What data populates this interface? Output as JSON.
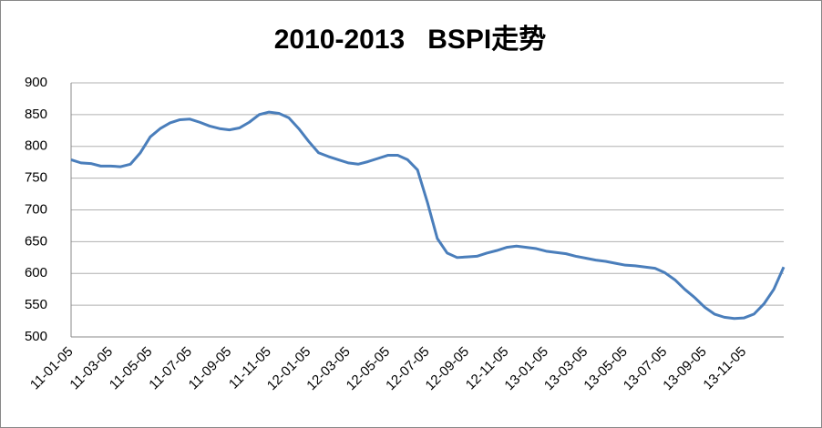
{
  "chart_data": {
    "type": "line",
    "title": "2010-2013   BSPI走势",
    "categories": [
      "11-01-05",
      null,
      null,
      null,
      "11-03-05",
      null,
      null,
      null,
      "11-05-05",
      null,
      null,
      null,
      "11-07-05",
      null,
      null,
      null,
      "11-09-05",
      null,
      null,
      null,
      "11-11-05",
      null,
      null,
      null,
      "12-01-05",
      null,
      null,
      null,
      "12-03-05",
      null,
      null,
      null,
      "12-05-05",
      null,
      null,
      null,
      "12-07-05",
      null,
      null,
      null,
      "12-09-05",
      null,
      null,
      null,
      "12-11-05",
      null,
      null,
      null,
      "13-01-05",
      null,
      null,
      null,
      "13-03-05",
      null,
      null,
      null,
      "13-05-05",
      null,
      null,
      null,
      "13-07-05",
      null,
      null,
      null,
      "13-09-05",
      null,
      null,
      null,
      "13-11-05",
      null,
      null,
      null,
      null
    ],
    "series": [
      {
        "name": "BSPI",
        "color": "#4a7ebb",
        "values": [
          779,
          774,
          773,
          769,
          769,
          768,
          772,
          790,
          815,
          828,
          837,
          842,
          843,
          838,
          832,
          828,
          826,
          829,
          838,
          850,
          854,
          852,
          845,
          828,
          808,
          790,
          784,
          779,
          774,
          772,
          776,
          781,
          786,
          786,
          779,
          763,
          712,
          655,
          632,
          625,
          626,
          627,
          632,
          636,
          641,
          643,
          641,
          639,
          635,
          633,
          631,
          627,
          624,
          621,
          619,
          616,
          613,
          612,
          610,
          608,
          601,
          590,
          575,
          562,
          547,
          536,
          531,
          529,
          530,
          536,
          552,
          575,
          610
        ]
      }
    ],
    "ylim": [
      500,
      900
    ],
    "yticks": [
      500,
      550,
      600,
      650,
      700,
      750,
      800,
      850,
      900
    ],
    "grid": true
  }
}
